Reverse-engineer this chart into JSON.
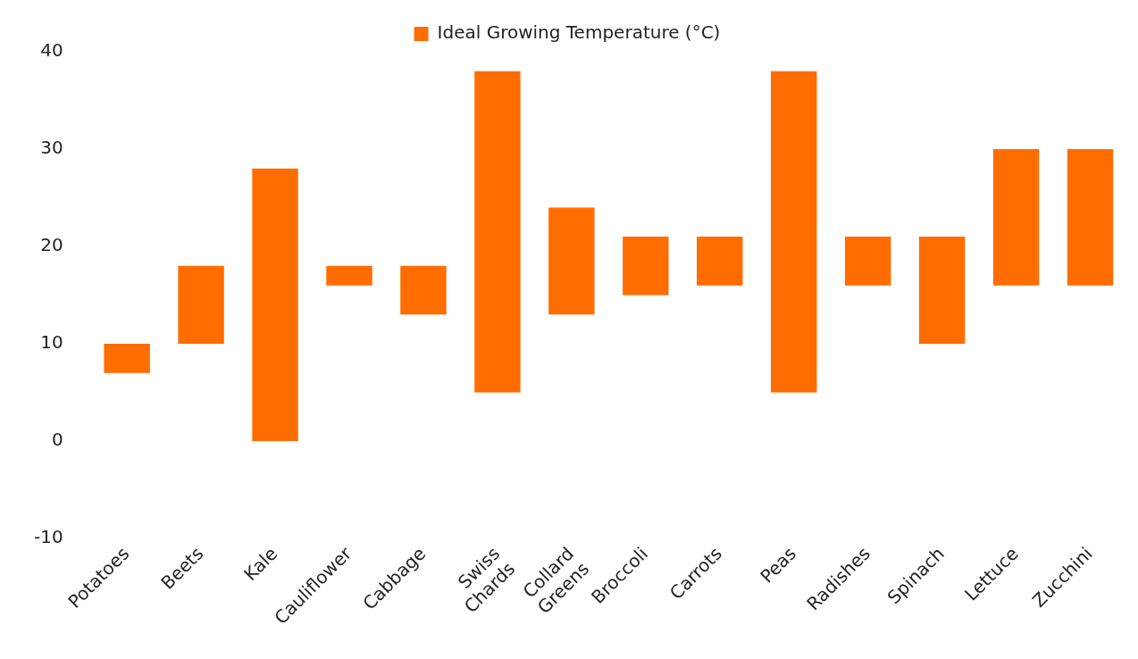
{
  "chart_data": {
    "type": "bar",
    "categories": [
      "Potatoes",
      "Beets",
      "Kale",
      "Cauliflower",
      "Cabbage",
      "Swiss Chards",
      "Collard Greens",
      "Broccoli",
      "Carrots",
      "Peas",
      "Radishes",
      "Spinach",
      "Lettuce",
      "Zucchini"
    ],
    "series": [
      {
        "name": "Ideal Growing Temperature (°C)",
        "color": "#ff6d00",
        "base": [
          7,
          10,
          0,
          16,
          13,
          5,
          13,
          15,
          16,
          5,
          16,
          10,
          16,
          16
        ],
        "values": [
          3,
          8,
          28,
          2,
          5,
          33,
          11,
          6,
          5,
          33,
          5,
          11,
          14,
          14
        ]
      }
    ],
    "ylim": [
      -10,
      40
    ],
    "yticks": [
      -10,
      0,
      10,
      20,
      30,
      40
    ],
    "grid": false,
    "legend": "top"
  }
}
